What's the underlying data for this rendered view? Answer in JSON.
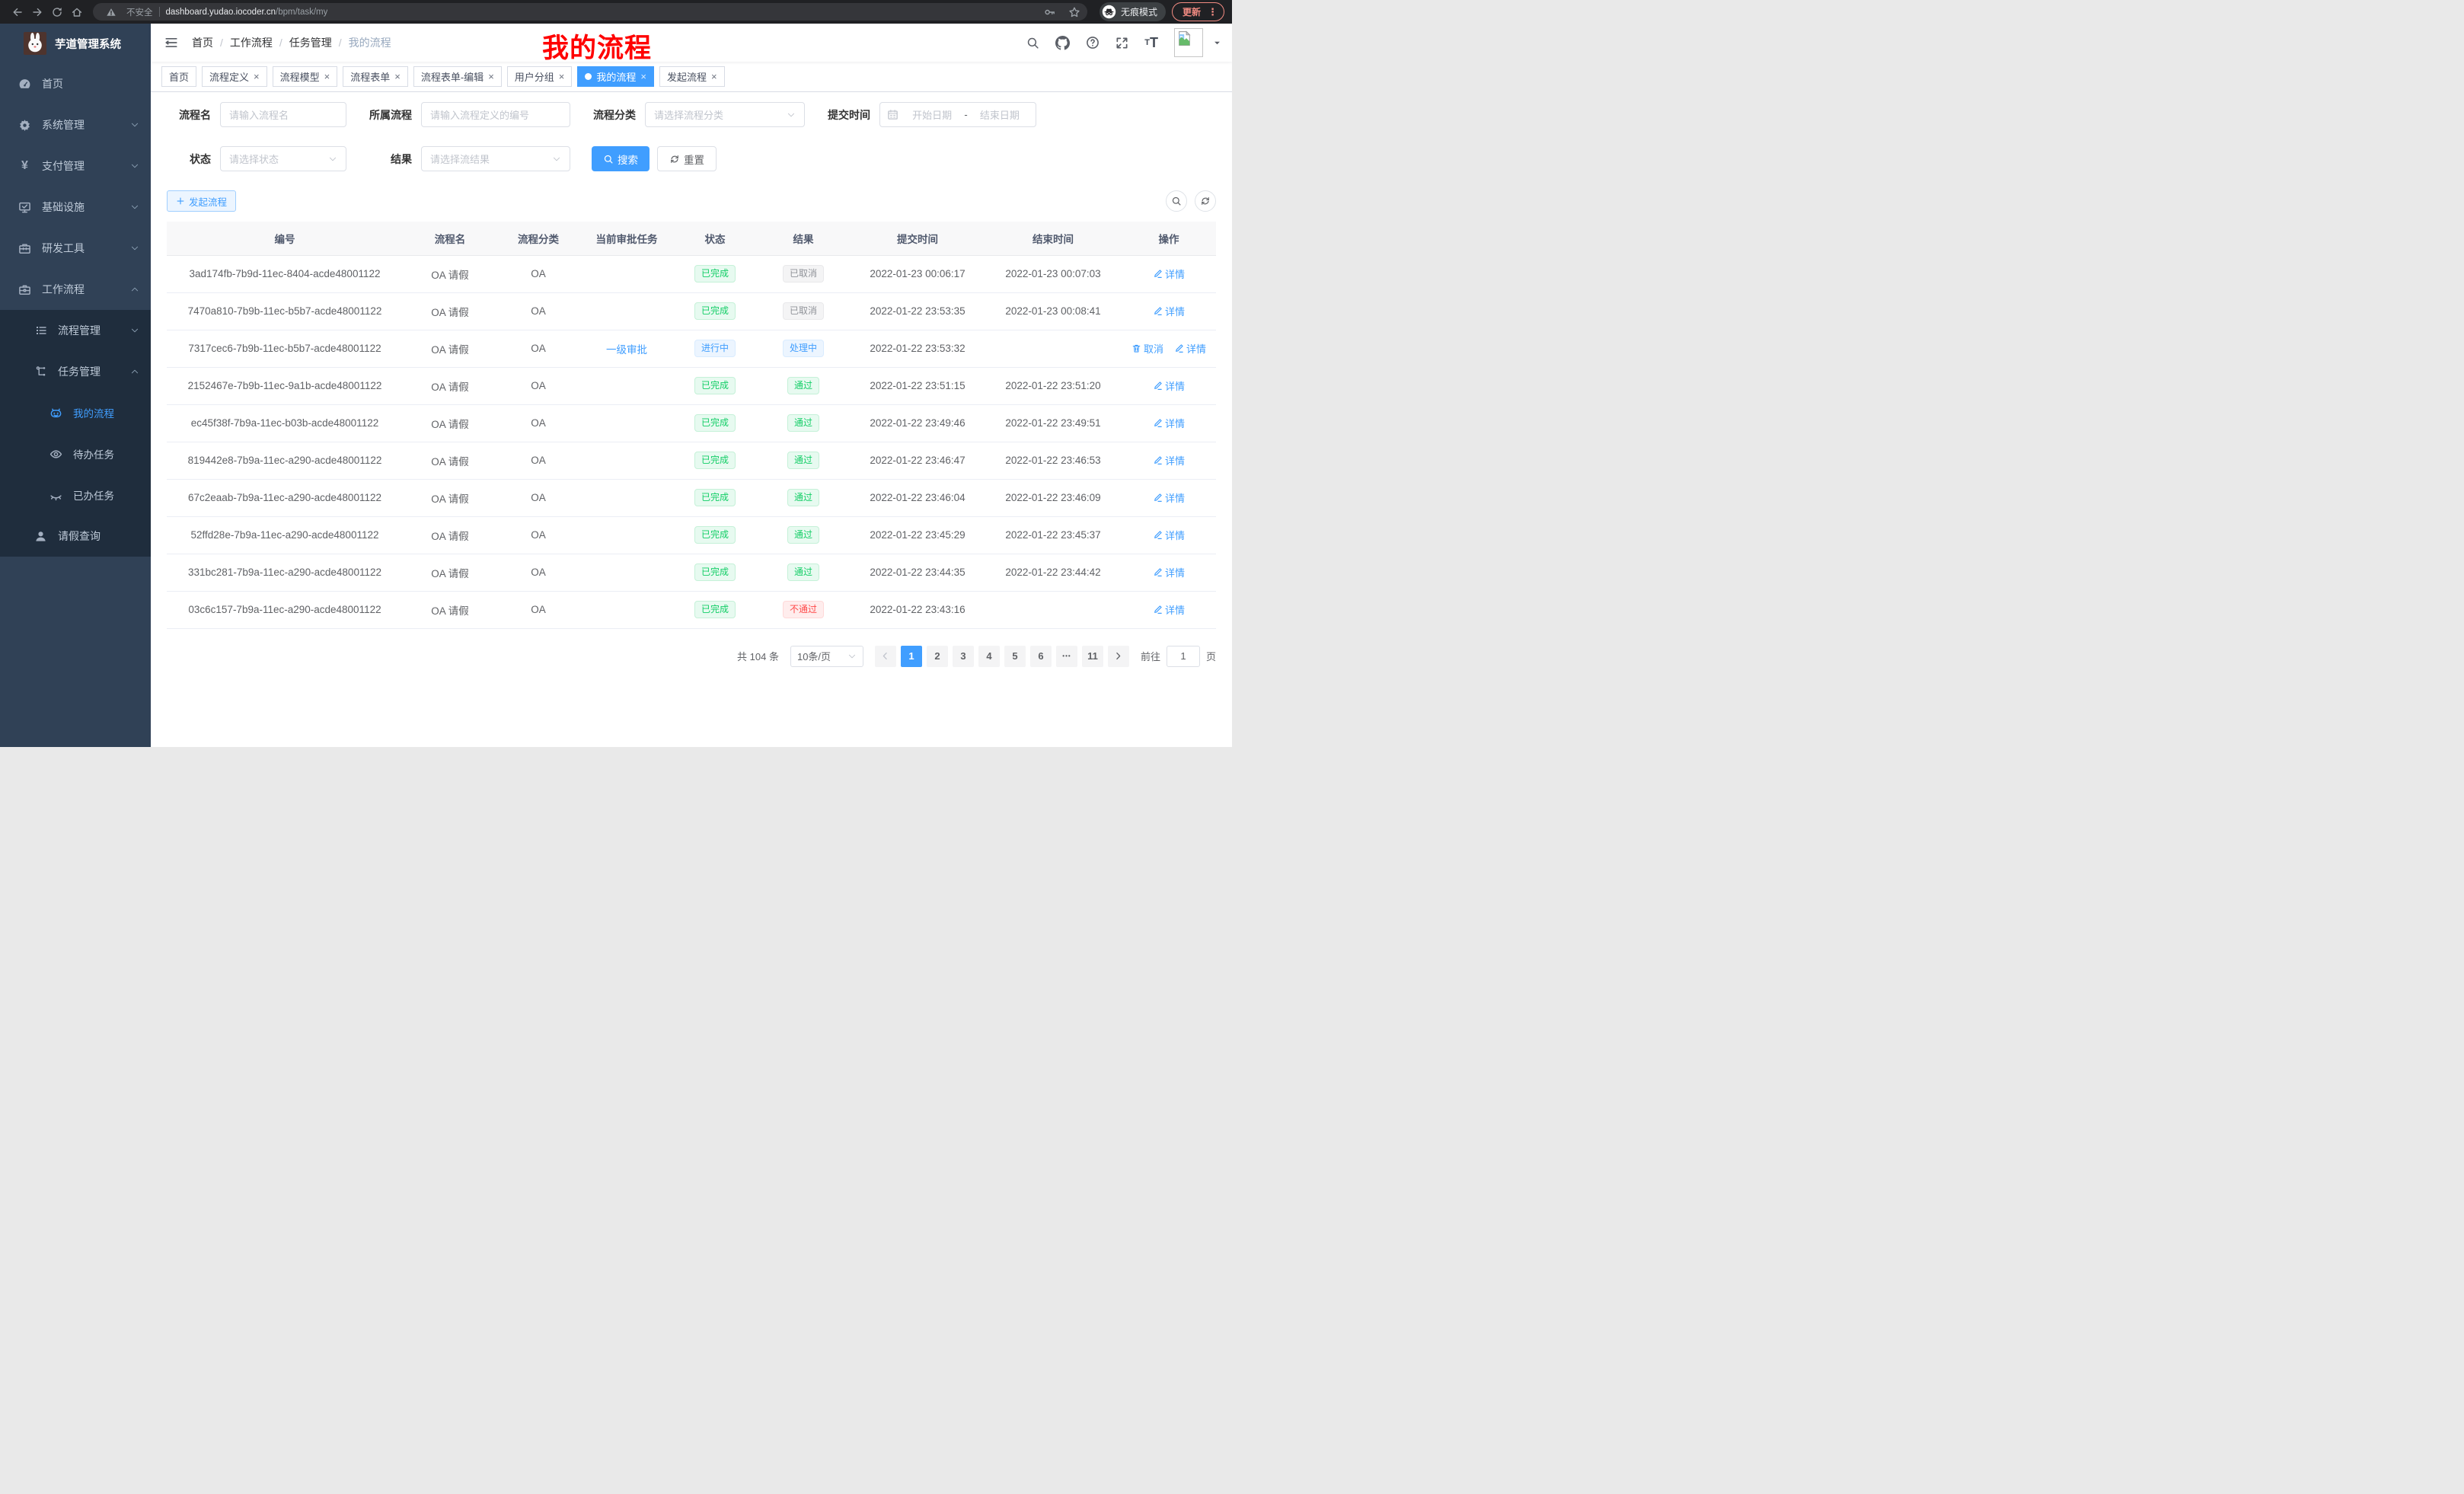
{
  "colors": {
    "primary": "#409eff",
    "success": "#13ce66",
    "info": "#909399",
    "danger": "#ff4949",
    "sidebar_bg": "#304156",
    "submenu_bg": "#1f2d3d"
  },
  "browser": {
    "security_label": "不安全",
    "url_domain": "dashboard.yudao.iocoder.cn",
    "url_path": "/bpm/task/my",
    "incognito_label": "无痕模式",
    "update_label": "更新"
  },
  "sidebar": {
    "app_title": "芋道管理系统",
    "menu": [
      {
        "name": "home",
        "label": "首页",
        "icon": "dashboard-icon",
        "level": 1,
        "state": "none",
        "active": false
      },
      {
        "name": "system-management",
        "label": "系统管理",
        "icon": "gear-icon",
        "level": 1,
        "state": "collapsed",
        "active": false
      },
      {
        "name": "payment-management",
        "label": "支付管理",
        "icon": "yen-icon",
        "level": 1,
        "state": "collapsed",
        "active": false
      },
      {
        "name": "infrastructure",
        "label": "基础设施",
        "icon": "monitor-icon",
        "level": 1,
        "state": "collapsed",
        "active": false
      },
      {
        "name": "dev-tools",
        "label": "研发工具",
        "icon": "toolbox-icon",
        "level": 1,
        "state": "collapsed",
        "active": false
      },
      {
        "name": "workflow",
        "label": "工作流程",
        "icon": "briefcase-icon",
        "level": 1,
        "state": "expanded",
        "active": false
      }
    ],
    "workflow_submenu": [
      {
        "name": "process-management",
        "label": "流程管理",
        "icon": "process-list-icon",
        "level": 2,
        "state": "collapsed",
        "active": false
      },
      {
        "name": "task-management",
        "label": "任务管理",
        "icon": "task-tree-icon",
        "level": 2,
        "state": "expanded",
        "active": false
      },
      {
        "name": "my-process",
        "label": "我的流程",
        "icon": "robot-icon",
        "level": 3,
        "state": "none",
        "active": true
      },
      {
        "name": "todo-tasks",
        "label": "待办任务",
        "icon": "eye-icon",
        "level": 3,
        "state": "none",
        "active": false
      },
      {
        "name": "done-tasks",
        "label": "已办任务",
        "icon": "eye-closed-icon",
        "level": 3,
        "state": "none",
        "active": false
      },
      {
        "name": "leave-query",
        "label": "请假查询",
        "icon": "user-icon",
        "level": 2,
        "state": "none",
        "active": false
      }
    ]
  },
  "navbar": {
    "breadcrumb": [
      "首页",
      "工作流程",
      "任务管理",
      "我的流程"
    ],
    "annotation": "我的流程"
  },
  "tabs": [
    {
      "name": "home",
      "label": "首页",
      "closable": false,
      "active": false
    },
    {
      "name": "process-definition",
      "label": "流程定义",
      "closable": true,
      "active": false
    },
    {
      "name": "process-model",
      "label": "流程模型",
      "closable": true,
      "active": false
    },
    {
      "name": "process-form",
      "label": "流程表单",
      "closable": true,
      "active": false
    },
    {
      "name": "process-form-edit",
      "label": "流程表单-编辑",
      "closable": true,
      "active": false
    },
    {
      "name": "user-group",
      "label": "用户分组",
      "closable": true,
      "active": false
    },
    {
      "name": "my-process",
      "label": "我的流程",
      "closable": true,
      "active": true
    },
    {
      "name": "start-process",
      "label": "发起流程",
      "closable": true,
      "active": false
    }
  ],
  "filters": {
    "row1": [
      {
        "name": "process-name",
        "label": "流程名",
        "type": "input",
        "width": "w1",
        "placeholder": "请输入流程名"
      },
      {
        "name": "process-definition",
        "label": "所属流程",
        "type": "input",
        "width": "w2",
        "placeholder": "请输入流程定义的编号"
      },
      {
        "name": "process-category",
        "label": "流程分类",
        "type": "select",
        "width": "w3",
        "placeholder": "请选择流程分类"
      },
      {
        "name": "submit-time",
        "label": "提交时间",
        "type": "daterange",
        "start_placeholder": "开始日期",
        "separator": "-",
        "end_placeholder": "结束日期"
      }
    ],
    "row2": [
      {
        "name": "status",
        "label": "状态",
        "type": "select",
        "width": "w1",
        "placeholder": "请选择状态"
      },
      {
        "name": "result",
        "label": "结果",
        "type": "select",
        "width": "w2",
        "placeholder": "请选择流结果"
      }
    ],
    "search_label": "搜索",
    "reset_label": "重置"
  },
  "toolbar": {
    "create_label": "发起流程"
  },
  "table": {
    "headers": [
      "编号",
      "流程名",
      "流程分类",
      "当前审批任务",
      "状态",
      "结果",
      "提交时间",
      "结束时间",
      "操作"
    ],
    "rows": [
      {
        "id": "3ad174fb-7b9d-11ec-8404-acde48001122",
        "name": "OA 请假",
        "category": "OA",
        "task": "",
        "status": "已完成",
        "status_type": "success",
        "result": "已取消",
        "result_type": "info",
        "submit_time": "2022-01-23 00:06:17",
        "end_time": "2022-01-23 00:07:03",
        "actions": [
          {
            "label": "详情",
            "icon": "edit-icon"
          }
        ]
      },
      {
        "id": "7470a810-7b9b-11ec-b5b7-acde48001122",
        "name": "OA 请假",
        "category": "OA",
        "task": "",
        "status": "已完成",
        "status_type": "success",
        "result": "已取消",
        "result_type": "info",
        "submit_time": "2022-01-22 23:53:35",
        "end_time": "2022-01-23 00:08:41",
        "actions": [
          {
            "label": "详情",
            "icon": "edit-icon"
          }
        ]
      },
      {
        "id": "7317cec6-7b9b-11ec-b5b7-acde48001122",
        "name": "OA 请假",
        "category": "OA",
        "task": "一级审批",
        "status": "进行中",
        "status_type": "primary",
        "result": "处理中",
        "result_type": "primary",
        "submit_time": "2022-01-22 23:53:32",
        "end_time": "",
        "actions": [
          {
            "label": "取消",
            "icon": "trash-icon"
          },
          {
            "label": "详情",
            "icon": "edit-icon"
          }
        ]
      },
      {
        "id": "2152467e-7b9b-11ec-9a1b-acde48001122",
        "name": "OA 请假",
        "category": "OA",
        "task": "",
        "status": "已完成",
        "status_type": "success",
        "result": "通过",
        "result_type": "success",
        "submit_time": "2022-01-22 23:51:15",
        "end_time": "2022-01-22 23:51:20",
        "actions": [
          {
            "label": "详情",
            "icon": "edit-icon"
          }
        ]
      },
      {
        "id": "ec45f38f-7b9a-11ec-b03b-acde48001122",
        "name": "OA 请假",
        "category": "OA",
        "task": "",
        "status": "已完成",
        "status_type": "success",
        "result": "通过",
        "result_type": "success",
        "submit_time": "2022-01-22 23:49:46",
        "end_time": "2022-01-22 23:49:51",
        "actions": [
          {
            "label": "详情",
            "icon": "edit-icon"
          }
        ]
      },
      {
        "id": "819442e8-7b9a-11ec-a290-acde48001122",
        "name": "OA 请假",
        "category": "OA",
        "task": "",
        "status": "已完成",
        "status_type": "success",
        "result": "通过",
        "result_type": "success",
        "submit_time": "2022-01-22 23:46:47",
        "end_time": "2022-01-22 23:46:53",
        "actions": [
          {
            "label": "详情",
            "icon": "edit-icon"
          }
        ]
      },
      {
        "id": "67c2eaab-7b9a-11ec-a290-acde48001122",
        "name": "OA 请假",
        "category": "OA",
        "task": "",
        "status": "已完成",
        "status_type": "success",
        "result": "通过",
        "result_type": "success",
        "submit_time": "2022-01-22 23:46:04",
        "end_time": "2022-01-22 23:46:09",
        "actions": [
          {
            "label": "详情",
            "icon": "edit-icon"
          }
        ]
      },
      {
        "id": "52ffd28e-7b9a-11ec-a290-acde48001122",
        "name": "OA 请假",
        "category": "OA",
        "task": "",
        "status": "已完成",
        "status_type": "success",
        "result": "通过",
        "result_type": "success",
        "submit_time": "2022-01-22 23:45:29",
        "end_time": "2022-01-22 23:45:37",
        "actions": [
          {
            "label": "详情",
            "icon": "edit-icon"
          }
        ]
      },
      {
        "id": "331bc281-7b9a-11ec-a290-acde48001122",
        "name": "OA 请假",
        "category": "OA",
        "task": "",
        "status": "已完成",
        "status_type": "success",
        "result": "通过",
        "result_type": "success",
        "submit_time": "2022-01-22 23:44:35",
        "end_time": "2022-01-22 23:44:42",
        "actions": [
          {
            "label": "详情",
            "icon": "edit-icon"
          }
        ]
      },
      {
        "id": "03c6c157-7b9a-11ec-a290-acde48001122",
        "name": "OA 请假",
        "category": "OA",
        "task": "",
        "status": "已完成",
        "status_type": "success",
        "result": "不通过",
        "result_type": "danger",
        "submit_time": "2022-01-22 23:43:16",
        "end_time": "",
        "actions": [
          {
            "label": "详情",
            "icon": "edit-icon"
          }
        ]
      }
    ]
  },
  "pagination": {
    "total_label": "共 104 条",
    "page_size_label": "10条/页",
    "pages": [
      "1",
      "2",
      "3",
      "4",
      "5",
      "6",
      "…",
      "11"
    ],
    "current_page": "1",
    "goto_label": "前往",
    "goto_value": "1",
    "goto_suffix": "页"
  }
}
